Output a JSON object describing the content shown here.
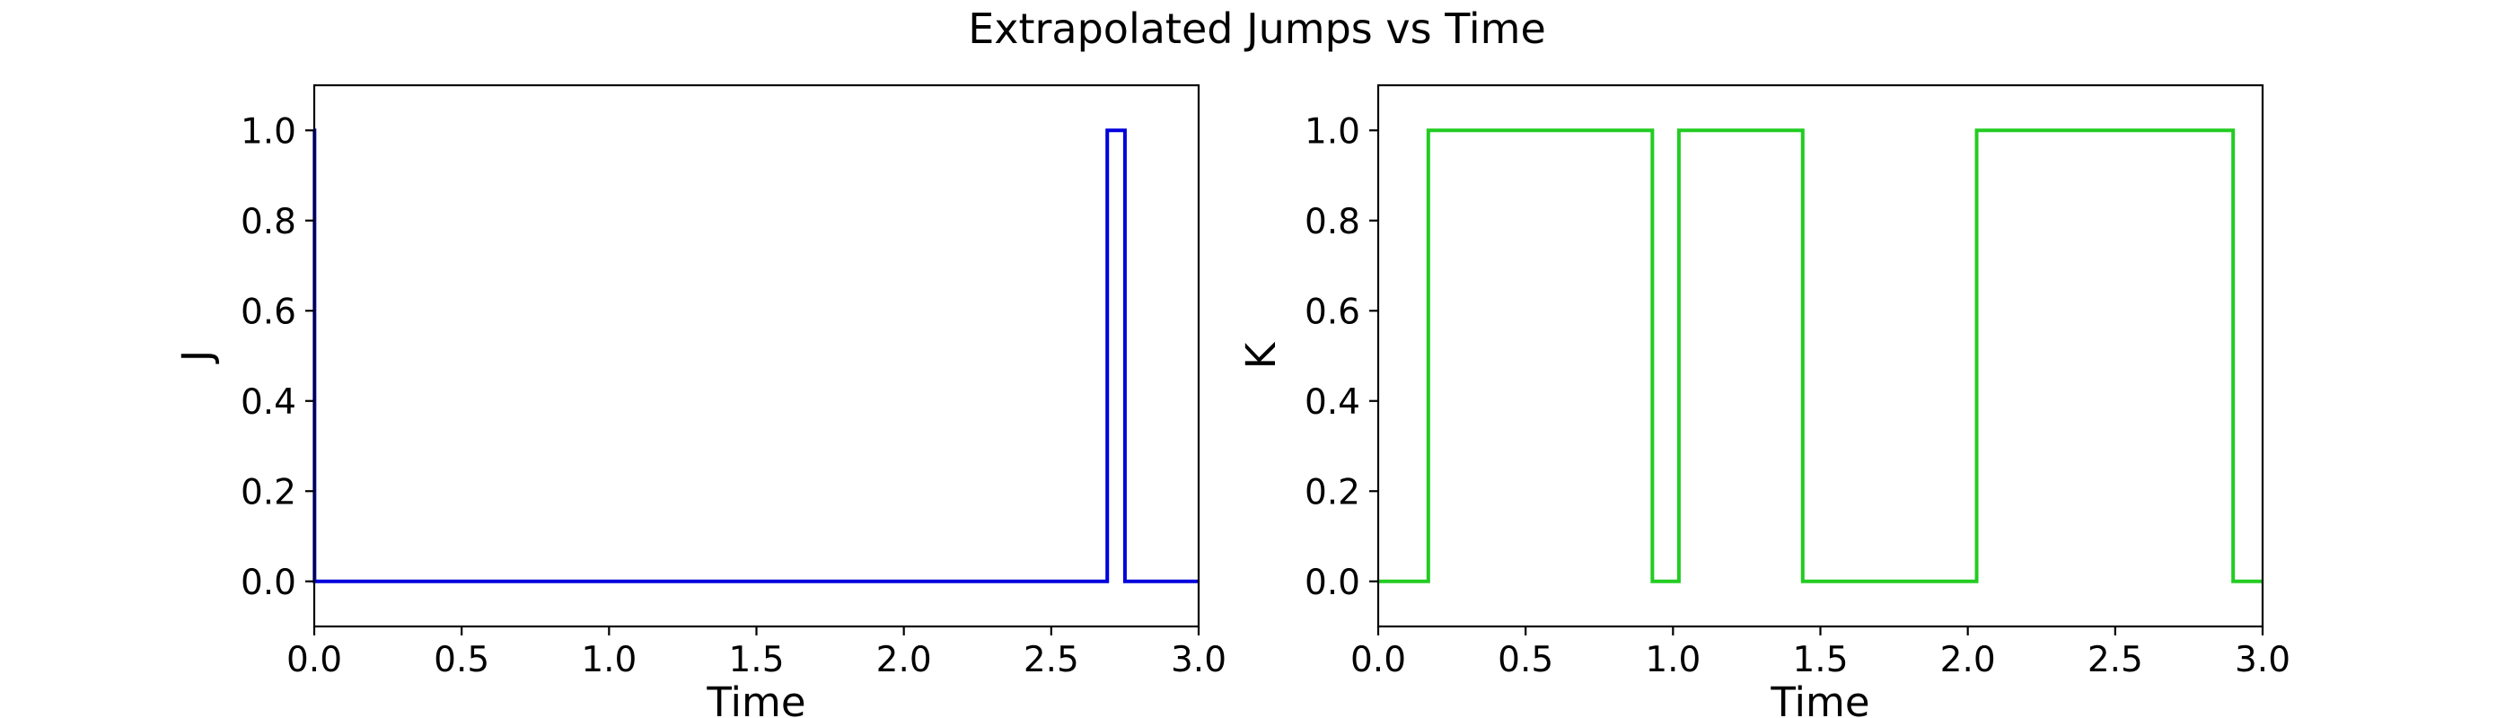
{
  "figure_title": "Extrapolated Jumps vs Time",
  "chart_data": [
    {
      "type": "line",
      "step": "post",
      "title": "",
      "xlabel": "Time",
      "ylabel": "J",
      "xlim": [
        0.0,
        3.0
      ],
      "ylim": [
        -0.1,
        1.1
      ],
      "xticks": [
        "0.0",
        "0.5",
        "1.0",
        "1.5",
        "2.0",
        "2.5",
        "3.0"
      ],
      "yticks": [
        "0.0",
        "0.2",
        "0.4",
        "0.6",
        "0.8",
        "1.0"
      ],
      "color": "#0000dd",
      "grid": false,
      "x": [
        0.0,
        0.001,
        2.69,
        2.75,
        3.0
      ],
      "y": [
        1,
        0,
        1,
        0,
        0
      ]
    },
    {
      "type": "line",
      "step": "post",
      "title": "",
      "xlabel": "Time",
      "ylabel": "K",
      "xlim": [
        0.0,
        3.0
      ],
      "ylim": [
        -0.1,
        1.1
      ],
      "xticks": [
        "0.0",
        "0.5",
        "1.0",
        "1.5",
        "2.0",
        "2.5",
        "3.0"
      ],
      "yticks": [
        "0.0",
        "0.2",
        "0.4",
        "0.6",
        "0.8",
        "1.0"
      ],
      "color": "#22cc22",
      "grid": false,
      "x": [
        0.0,
        0.17,
        0.93,
        1.02,
        1.44,
        2.03,
        2.9,
        3.0
      ],
      "y": [
        0,
        1,
        0,
        1,
        0,
        1,
        0,
        0
      ]
    }
  ]
}
